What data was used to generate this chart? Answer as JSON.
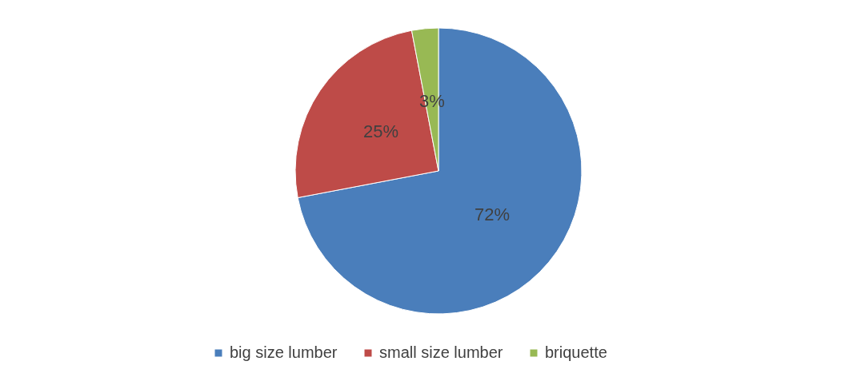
{
  "chart_data": {
    "type": "pie",
    "categories": [
      "big size lumber",
      "small size lumber",
      "briquette"
    ],
    "values": [
      72,
      25,
      3
    ],
    "colors": [
      "#4a7ebb",
      "#be4b48",
      "#98b954"
    ],
    "value_labels": [
      "72%",
      "25%",
      "3%"
    ],
    "legend": "bottom"
  }
}
